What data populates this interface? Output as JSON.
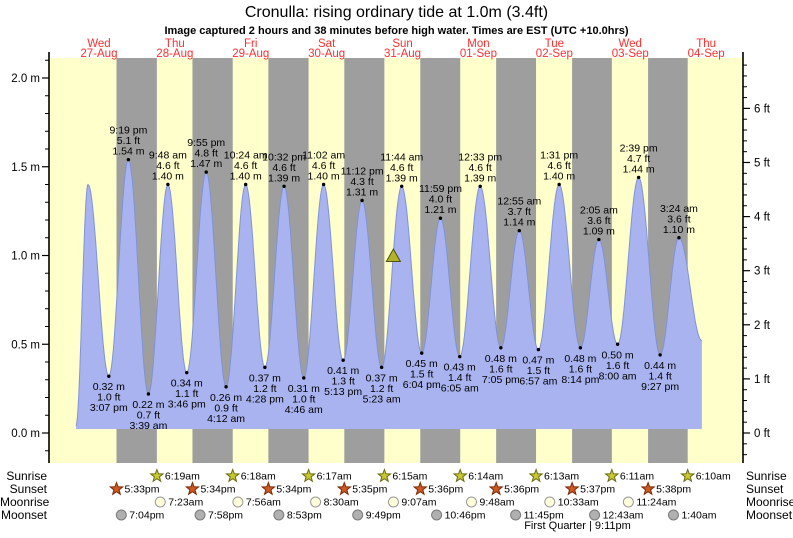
{
  "title": "Cronulla: rising  ordinary tide at 1.0m (3.4ft)",
  "subtitle": "Image captured 2 hours and 38 minutes before high water. Times are EST (UTC +10.0hrs)",
  "days": [
    {
      "weekday": "Wed",
      "date": "27-Aug"
    },
    {
      "weekday": "Thu",
      "date": "28-Aug"
    },
    {
      "weekday": "Fri",
      "date": "29-Aug"
    },
    {
      "weekday": "Sat",
      "date": "30-Aug"
    },
    {
      "weekday": "Sun",
      "date": "31-Aug"
    },
    {
      "weekday": "Mon",
      "date": "01-Sep"
    },
    {
      "weekday": "Tue",
      "date": "02-Sep"
    },
    {
      "weekday": "Wed",
      "date": "03-Sep"
    },
    {
      "weekday": "Thu",
      "date": "04-Sep"
    }
  ],
  "axis_left": {
    "unit": "m",
    "major_ticks": [
      0.0,
      0.5,
      1.0,
      1.5,
      2.0
    ],
    "labels": [
      "0.0 m",
      "0.5 m",
      "1.0 m",
      "1.5 m",
      "2.0 m"
    ]
  },
  "axis_right": {
    "unit": "ft",
    "major_ticks": [
      0,
      1,
      2,
      3,
      4,
      5,
      6
    ],
    "labels": [
      "0 ft",
      "1 ft",
      "2 ft",
      "3 ft",
      "4 ft",
      "5 ft",
      "6 ft"
    ]
  },
  "chart_data": {
    "type": "area",
    "title": "Cronulla tide height",
    "x_unit": "days since Wed 27-Aug 00:00 EST",
    "y_unit": "m",
    "y_range_m": [
      0.0,
      2.0
    ],
    "y_range_ft": [
      0,
      6
    ],
    "grid": false,
    "extremes": [
      {
        "kind": "edge",
        "d": 0.197,
        "m": 0.04
      },
      {
        "kind": "high",
        "d": 0.356,
        "m": 1.4
      },
      {
        "kind": "low",
        "d": 0.6299,
        "m": 0.32,
        "ft": "1.0",
        "time": "3:07 pm"
      },
      {
        "kind": "high",
        "d": 0.8882,
        "m": 1.54,
        "ft": "5.1",
        "time": "9:19 pm"
      },
      {
        "kind": "low",
        "d": 1.1521,
        "m": 0.22,
        "ft": "0.7",
        "time": "3:39 am"
      },
      {
        "kind": "high",
        "d": 1.4083,
        "m": 1.4,
        "ft": "4.6",
        "time": "9:48 am"
      },
      {
        "kind": "low",
        "d": 1.6569,
        "m": 0.34,
        "ft": "1.1",
        "time": "3:46 pm"
      },
      {
        "kind": "high",
        "d": 1.9132,
        "m": 1.47,
        "ft": "4.8",
        "time": "9:55 pm"
      },
      {
        "kind": "low",
        "d": 2.175,
        "m": 0.26,
        "ft": "0.9",
        "time": "4:12 am"
      },
      {
        "kind": "high",
        "d": 2.4333,
        "m": 1.4,
        "ft": "4.6",
        "time": "10:24 am"
      },
      {
        "kind": "low",
        "d": 2.6861,
        "m": 0.37,
        "ft": "1.2",
        "time": "4:28 pm"
      },
      {
        "kind": "high",
        "d": 2.9389,
        "m": 1.39,
        "ft": "4.6",
        "time": "10:32 pm"
      },
      {
        "kind": "low",
        "d": 3.1986,
        "m": 0.31,
        "ft": "1.0",
        "time": "4:46 am"
      },
      {
        "kind": "high",
        "d": 3.4597,
        "m": 1.4,
        "ft": "4.6",
        "time": "11:02 am"
      },
      {
        "kind": "low",
        "d": 3.7174,
        "m": 0.41,
        "ft": "1.3",
        "time": "5:13 pm"
      },
      {
        "kind": "high",
        "d": 3.9667,
        "m": 1.31,
        "ft": "4.3",
        "time": "11:12 pm"
      },
      {
        "kind": "low",
        "d": 4.2243,
        "m": 0.37,
        "ft": "1.2",
        "time": "5:23 am"
      },
      {
        "kind": "high",
        "d": 4.4889,
        "m": 1.39,
        "ft": "4.6",
        "time": "11:44 am"
      },
      {
        "kind": "low",
        "d": 4.7528,
        "m": 0.45,
        "ft": "1.5",
        "time": "6:04 pm"
      },
      {
        "kind": "high",
        "d": 4.9993,
        "m": 1.21,
        "ft": "4.0",
        "time": "11:59 pm"
      },
      {
        "kind": "low",
        "d": 5.2535,
        "m": 0.43,
        "ft": "1.4",
        "time": "6:05 am"
      },
      {
        "kind": "high",
        "d": 5.5229,
        "m": 1.39,
        "ft": "4.6",
        "time": "12:33 pm"
      },
      {
        "kind": "low",
        "d": 5.7951,
        "m": 0.48,
        "ft": "1.6",
        "time": "7:05 pm"
      },
      {
        "kind": "high",
        "d": 6.0382,
        "m": 1.14,
        "ft": "3.7",
        "time": "12:55 am"
      },
      {
        "kind": "low",
        "d": 6.2896,
        "m": 0.47,
        "ft": "1.5",
        "time": "6:57 am"
      },
      {
        "kind": "high",
        "d": 6.5632,
        "m": 1.4,
        "ft": "4.6",
        "time": "1:31 pm"
      },
      {
        "kind": "low",
        "d": 6.8431,
        "m": 0.48,
        "ft": "1.6",
        "time": "8:14 pm"
      },
      {
        "kind": "high",
        "d": 7.0868,
        "m": 1.09,
        "ft": "3.6",
        "time": "2:05 am"
      },
      {
        "kind": "low",
        "d": 7.3333,
        "m": 0.5,
        "ft": "1.6",
        "time": "8:00 am"
      },
      {
        "kind": "high",
        "d": 7.6104,
        "m": 1.44,
        "ft": "4.7",
        "time": "2:39 pm"
      },
      {
        "kind": "low",
        "d": 7.8938,
        "m": 0.44,
        "ft": "1.4",
        "time": "9:27 pm"
      },
      {
        "kind": "high",
        "d": 8.1417,
        "m": 1.1,
        "ft": "3.6",
        "time": "3:24 am"
      },
      {
        "kind": "edge",
        "d": 8.444,
        "m": 0.52
      }
    ],
    "current_marker": {
      "shape": "triangle",
      "d": 4.3792,
      "m": 1.0
    }
  },
  "astro": {
    "row_labels": [
      "Sunrise",
      "Sunset",
      "Moonrise",
      "Moonset"
    ],
    "sunrise": [
      {
        "d": 1.2632,
        "label": "6:19am"
      },
      {
        "d": 2.2625,
        "label": "6:18am"
      },
      {
        "d": 3.2618,
        "label": "6:17am"
      },
      {
        "d": 4.2604,
        "label": "6:15am"
      },
      {
        "d": 5.2597,
        "label": "6:14am"
      },
      {
        "d": 6.259,
        "label": "6:13am"
      },
      {
        "d": 7.2576,
        "label": "6:11am"
      },
      {
        "d": 8.2569,
        "label": "6:10am"
      }
    ],
    "sunset": [
      {
        "d": 0.7313,
        "label": "5:33pm"
      },
      {
        "d": 1.7319,
        "label": "5:34pm"
      },
      {
        "d": 2.7319,
        "label": "5:34pm"
      },
      {
        "d": 3.7326,
        "label": "5:35pm"
      },
      {
        "d": 4.7333,
        "label": "5:36pm"
      },
      {
        "d": 5.7333,
        "label": "5:36pm"
      },
      {
        "d": 6.734,
        "label": "5:37pm"
      },
      {
        "d": 7.7347,
        "label": "5:38pm"
      }
    ],
    "moonrise": [
      {
        "d": 1.3076,
        "label": "7:23am"
      },
      {
        "d": 2.3306,
        "label": "7:56am"
      },
      {
        "d": 3.3542,
        "label": "8:30am"
      },
      {
        "d": 4.3799,
        "label": "9:07am"
      },
      {
        "d": 5.4083,
        "label": "9:48am"
      },
      {
        "d": 6.4396,
        "label": "10:33am"
      },
      {
        "d": 7.475,
        "label": "11:24am"
      }
    ],
    "moonset": [
      {
        "d": 0.7944,
        "label": "7:04pm"
      },
      {
        "d": 1.8319,
        "label": "7:58pm"
      },
      {
        "d": 2.8701,
        "label": "8:53pm"
      },
      {
        "d": 3.909,
        "label": "9:49pm"
      },
      {
        "d": 4.9486,
        "label": "10:46pm"
      },
      {
        "d": 5.9896,
        "label": "11:45pm"
      },
      {
        "d": 7.0299,
        "label": "12:43am"
      },
      {
        "d": 8.0694,
        "label": "1:40am"
      }
    ],
    "moon_phase": "First Quarter | 9:11pm"
  },
  "colors": {
    "day_band": "#ffffcc",
    "night_band": "#9e9e9e",
    "tide_fill": "#a9b3ef",
    "tide_stroke": "#8093d8",
    "date_red": "#fb3030",
    "marker_fill": "#b2b22c",
    "marker_stroke": "#50500f",
    "sunrise_star_fill": "#c8c832",
    "sunrise_star_stroke": "#6b6b14",
    "sunset_star_fill": "#cc5a22",
    "sunset_star_stroke": "#7a2a08",
    "moonrise_circle_fill": "#ffffd9",
    "moonrise_circle_stroke": "#9a9a9a",
    "moonset_circle_fill": "#b0b0b0",
    "moonset_circle_stroke": "#7a7a7a"
  }
}
